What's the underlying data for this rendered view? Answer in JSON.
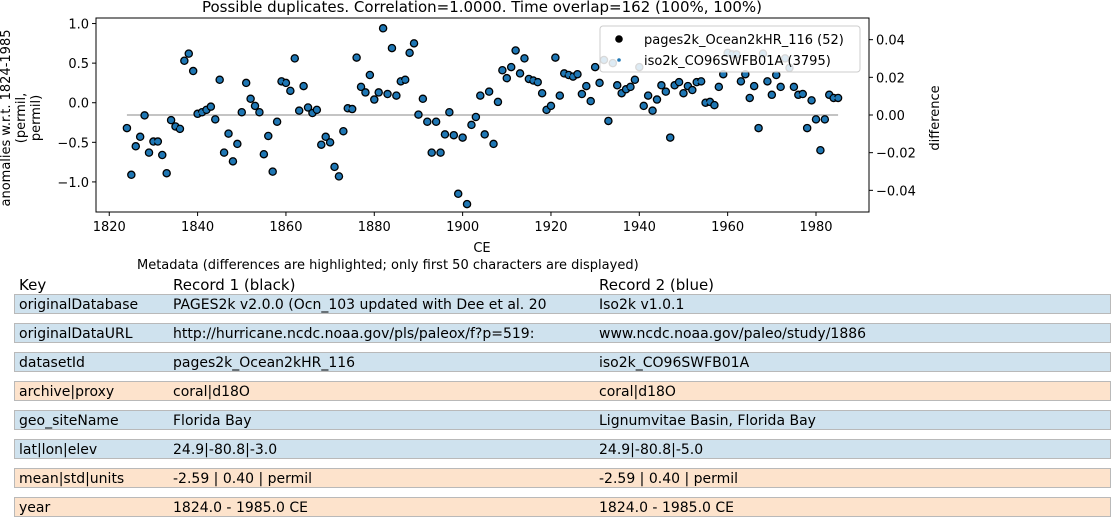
{
  "colors": {
    "series1_edge": "#000000",
    "series1_face": "#1f77b4",
    "series2_marker": "#1f77b4",
    "diff_line": "#b0b0b0",
    "row_same": "#fde3cc",
    "row_diff": "#cfe2ee"
  },
  "chart_data": {
    "type": "scatter",
    "title": "Possible duplicates. Correlation=1.0000. Time overlap=162 (100%, 100%)",
    "xlabel": "CE",
    "ylabel": "anomalies w.r.t. 1824-1985 (permil, permil)",
    "ylabel_lines": [
      "anomalies w.r.t. 1824-1985",
      "(permil,",
      "permil)"
    ],
    "y2label": "difference",
    "xlim": [
      1817,
      1992
    ],
    "ylim": [
      -1.38,
      1.07
    ],
    "y2lim": [
      -0.0515,
      0.0515
    ],
    "xticks": [
      1820,
      1840,
      1860,
      1880,
      1900,
      1920,
      1940,
      1960,
      1980
    ],
    "xtick_labels": [
      "1820",
      "1840",
      "1860",
      "1880",
      "1900",
      "1920",
      "1940",
      "1960",
      "1980"
    ],
    "yticks": [
      -1.0,
      -0.5,
      0.0,
      0.5,
      1.0
    ],
    "ytick_labels": [
      "−1.0",
      "−0.5",
      "0.0",
      "0.5",
      "1.0"
    ],
    "y2ticks": [
      -0.04,
      -0.02,
      0.0,
      0.02,
      0.04
    ],
    "y2tick_labels": [
      "−0.04",
      "−0.02",
      "0.00",
      "0.02",
      "0.04"
    ],
    "legend_position": "top-right",
    "grid": false,
    "series": [
      {
        "name": "pages2k_Ocean2kHR_116 (52)",
        "axis": "left",
        "marker": "circle-black-edge",
        "x": [
          1824,
          1825,
          1826,
          1827,
          1828,
          1829,
          1830,
          1831,
          1832,
          1833,
          1834,
          1835,
          1836,
          1837,
          1838,
          1839,
          1840,
          1841,
          1842,
          1843,
          1844,
          1845,
          1846,
          1847,
          1848,
          1849,
          1850,
          1851,
          1852,
          1853,
          1854,
          1855,
          1856,
          1857,
          1858,
          1859,
          1860,
          1861,
          1862,
          1863,
          1864,
          1865,
          1866,
          1867,
          1868,
          1869,
          1870,
          1871,
          1872,
          1873,
          1874,
          1875,
          1876,
          1877,
          1878,
          1879,
          1880,
          1881,
          1882,
          1883,
          1884,
          1885,
          1886,
          1887,
          1888,
          1889,
          1890,
          1891,
          1892,
          1893,
          1894,
          1895,
          1896,
          1897,
          1898,
          1899,
          1900,
          1901,
          1902,
          1903,
          1904,
          1905,
          1906,
          1907,
          1908,
          1909,
          1910,
          1911,
          1912,
          1913,
          1914,
          1915,
          1916,
          1917,
          1918,
          1919,
          1920,
          1921,
          1922,
          1923,
          1924,
          1925,
          1926,
          1927,
          1928,
          1929,
          1930,
          1931,
          1932,
          1933,
          1934,
          1935,
          1936,
          1937,
          1938,
          1939,
          1940,
          1941,
          1942,
          1943,
          1944,
          1945,
          1946,
          1947,
          1948,
          1949,
          1950,
          1951,
          1952,
          1953,
          1954,
          1955,
          1956,
          1957,
          1958,
          1959,
          1960,
          1961,
          1962,
          1963,
          1964,
          1965,
          1966,
          1967,
          1968,
          1969,
          1970,
          1971,
          1972,
          1973,
          1974,
          1975,
          1976,
          1977,
          1978,
          1979,
          1980,
          1981,
          1982,
          1983,
          1984,
          1985
        ],
        "y": [
          -0.32,
          -0.91,
          -0.55,
          -0.43,
          -0.16,
          -0.63,
          -0.49,
          -0.49,
          -0.66,
          -0.89,
          -0.22,
          -0.3,
          -0.33,
          0.53,
          0.62,
          0.4,
          -0.14,
          -0.12,
          -0.09,
          -0.05,
          -0.21,
          0.29,
          -0.63,
          -0.39,
          -0.74,
          -0.52,
          -0.12,
          0.25,
          0.05,
          -0.04,
          -0.12,
          -0.65,
          -0.42,
          -0.87,
          -0.24,
          0.27,
          0.25,
          0.15,
          0.56,
          -0.1,
          0.21,
          -0.06,
          -0.13,
          -0.09,
          -0.53,
          -0.43,
          -0.5,
          -0.81,
          -0.93,
          -0.36,
          -0.07,
          -0.08,
          0.57,
          0.2,
          0.13,
          0.35,
          0.04,
          0.13,
          0.94,
          0.11,
          0.69,
          0.09,
          0.27,
          0.29,
          0.63,
          0.75,
          -0.15,
          0.05,
          -0.24,
          -0.63,
          -0.24,
          -0.63,
          -0.4,
          -0.12,
          -0.41,
          -1.15,
          -0.44,
          -1.28,
          -0.28,
          -0.18,
          0.09,
          -0.4,
          0.14,
          -0.52,
          0.01,
          0.41,
          0.31,
          0.45,
          0.66,
          0.37,
          0.56,
          0.3,
          0.28,
          0.26,
          0.12,
          -0.09,
          -0.04,
          0.57,
          0.09,
          0.37,
          0.35,
          0.33,
          0.36,
          0.11,
          0.21,
          0.02,
          0.45,
          0.25,
          0.54,
          -0.23,
          0.5,
          0.22,
          0.12,
          0.17,
          0.2,
          0.29,
          0.45,
          -0.04,
          0.09,
          -0.1,
          0.04,
          0.22,
          0.14,
          -0.44,
          0.22,
          0.26,
          0.12,
          0.21,
          0.16,
          0.26,
          0.27,
          0.0,
          0.01,
          -0.03,
          0.2,
          0.36,
          0.63,
          0.61,
          0.61,
          0.27,
          0.36,
          0.06,
          0.21,
          -0.32,
          0.62,
          0.27,
          0.1,
          0.35,
          0.2,
          0.56,
          0.44,
          0.2,
          0.1,
          0.11,
          -0.32,
          0.03,
          -0.21,
          -0.6,
          -0.21,
          0.1,
          0.06,
          0.06
        ]
      },
      {
        "name": "iso2k_CO96SWFB01A (3795)",
        "axis": "left",
        "marker": "small-dot",
        "same_as_series_1": true
      },
      {
        "name": "difference",
        "axis": "right",
        "marker": "line",
        "x": [
          1824,
          1985
        ],
        "y": [
          0.0,
          0.0
        ]
      }
    ]
  },
  "metadata": {
    "title": "Metadata (differences are highlighted; only first 50 characters are displayed)",
    "headers": [
      "Key",
      "Record 1 (black)",
      "Record 2 (blue)"
    ],
    "rows": [
      {
        "key": "originalDatabase",
        "r1": "PAGES2k v2.0.0 (Ocn_103 updated with Dee et al. 20",
        "r2": "Iso2k v1.0.1",
        "diff": true
      },
      {
        "key": "originalDataURL",
        "r1": "http://hurricane.ncdc.noaa.gov/pls/paleox/f?p=519:",
        "r2": "www.ncdc.noaa.gov/paleo/study/1886",
        "diff": true
      },
      {
        "key": "datasetId",
        "r1": "pages2k_Ocean2kHR_116",
        "r2": "iso2k_CO96SWFB01A",
        "diff": true
      },
      {
        "key": "archive|proxy",
        "r1": "coral|d18O",
        "r2": "coral|d18O",
        "diff": false
      },
      {
        "key": "geo_siteName",
        "r1": "Florida Bay",
        "r2": "Lignumvitae Basin, Florida Bay",
        "diff": true
      },
      {
        "key": "lat|lon|elev",
        "r1": "24.9|-80.8|-3.0",
        "r2": "24.9|-80.8|-5.0",
        "diff": true
      },
      {
        "key": "mean|std|units",
        "r1": "-2.59 | 0.40 | permil",
        "r2": "-2.59 | 0.40 | permil",
        "diff": false
      },
      {
        "key": "year",
        "r1": "1824.0 - 1985.0 CE",
        "r2": "1824.0 - 1985.0 CE",
        "diff": false
      }
    ]
  }
}
